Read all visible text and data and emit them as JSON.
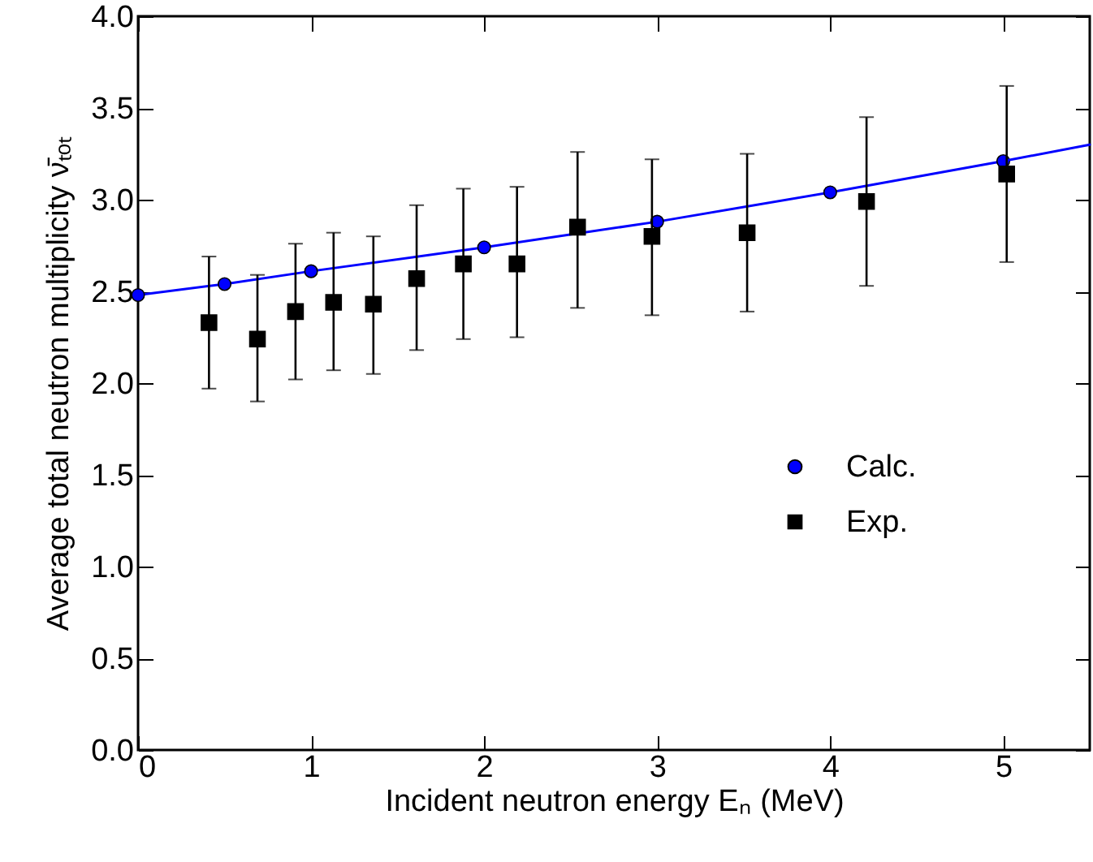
{
  "chart_data": {
    "type": "scatter",
    "xlabel": "Incident neutron energy Eₙ (MeV)",
    "ylabel": "Average total neutron multiplicity ν̄ₜₒₜ",
    "xlim": [
      0,
      5.5
    ],
    "xticks": [
      0,
      1,
      2,
      3,
      4,
      5
    ],
    "ylim": [
      0,
      4
    ],
    "yticks": [
      {
        "value": 0,
        "label": "0.0"
      },
      {
        "value": 0.5,
        "label": "0.5"
      },
      {
        "value": 1,
        "label": "1.0"
      },
      {
        "value": 1.5,
        "label": "1.5"
      },
      {
        "value": 2,
        "label": "2.0"
      },
      {
        "value": 2.5,
        "label": "2.5"
      },
      {
        "value": 3,
        "label": "3.0"
      },
      {
        "value": 3.5,
        "label": "3.5"
      },
      {
        "value": 4,
        "label": "4.0"
      }
    ],
    "legend": "right",
    "grid": false,
    "series": [
      {
        "name": "Calc.",
        "type": "line",
        "marker": "circle",
        "color": "#0000ff",
        "x": [
          0,
          0.5,
          1,
          2,
          3,
          4,
          5
        ],
        "values": [
          2.48,
          2.54,
          2.61,
          2.74,
          2.88,
          3.04,
          3.21
        ]
      },
      {
        "type": "line",
        "marker": "none",
        "color": "#0000ff",
        "x": [
          5,
          5.5
        ],
        "values": [
          3.21,
          3.3
        ]
      },
      {
        "name": "Exp.",
        "type": "scatter",
        "marker": "square",
        "color": "#000000",
        "x": [
          0.41,
          0.69,
          0.91,
          1.13,
          1.36,
          1.61,
          1.88,
          2.19,
          2.54,
          2.97,
          3.52,
          4.21,
          5.02
        ],
        "values": [
          2.33,
          2.24,
          2.39,
          2.44,
          2.43,
          2.57,
          2.65,
          2.65,
          2.85,
          2.8,
          2.82,
          2.99,
          3.14
        ],
        "errors": [
          [
            1.97,
            2.69
          ],
          [
            1.9,
            2.59
          ],
          [
            2.02,
            2.76
          ],
          [
            2.07,
            2.82
          ],
          [
            2.05,
            2.8
          ],
          [
            2.18,
            2.97
          ],
          [
            2.24,
            3.06
          ],
          [
            2.25,
            3.07
          ],
          [
            2.41,
            3.26
          ],
          [
            2.37,
            3.22
          ],
          [
            2.39,
            3.25
          ],
          [
            2.53,
            3.45
          ],
          [
            2.66,
            3.62
          ]
        ]
      }
    ]
  }
}
